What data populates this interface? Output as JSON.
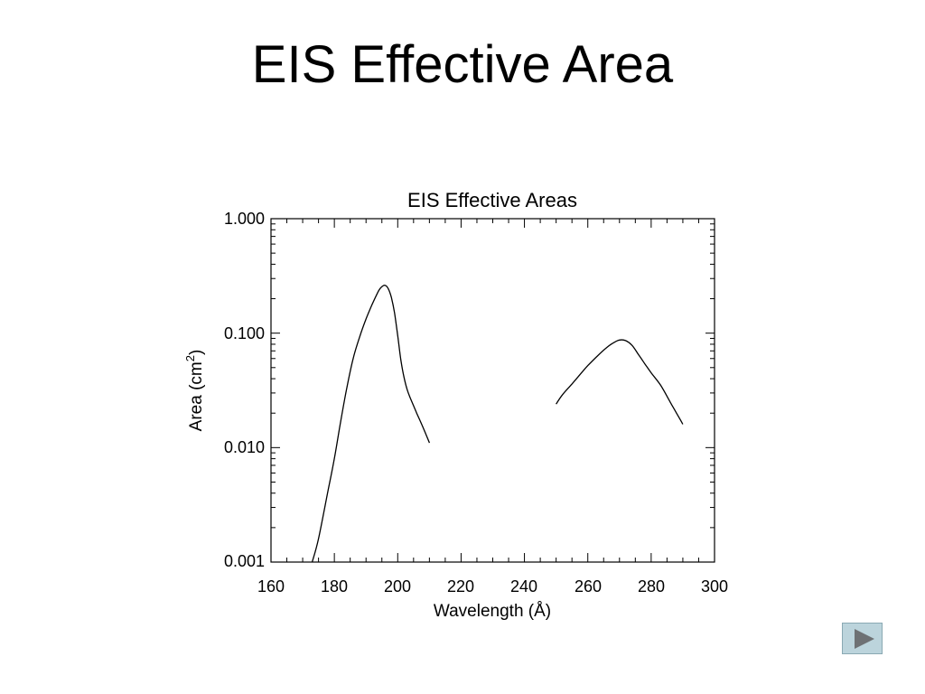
{
  "slide": {
    "title": "EIS Effective Area"
  },
  "nav": {
    "next_icon": "play-triangle-icon"
  },
  "colors": {
    "line": "#000000",
    "nav_fill": "#bcd4dc",
    "nav_arrow": "#6e7174"
  },
  "chart_data": {
    "type": "line",
    "title": "EIS Effective Areas",
    "xlabel": "Wavelength (Å)",
    "ylabel_main": "Area (cm",
    "ylabel_sup": "2",
    "ylabel_close": ")",
    "xlim": [
      160,
      300
    ],
    "ylim": [
      0.001,
      1.0
    ],
    "yscale": "log",
    "grid": false,
    "x_ticks": [
      "160",
      "180",
      "200",
      "220",
      "240",
      "260",
      "280",
      "300"
    ],
    "y_ticks": [
      "1.000",
      "0.100",
      "0.010",
      "0.001"
    ],
    "series": [
      {
        "x": [
          173,
          175,
          178,
          180,
          182,
          184,
          186,
          188,
          190,
          192,
          194,
          195,
          196,
          197,
          198,
          199,
          200,
          201,
          202,
          203,
          204,
          206,
          208,
          210
        ],
        "y": [
          0.001,
          0.0016,
          0.0042,
          0.008,
          0.017,
          0.034,
          0.061,
          0.093,
          0.133,
          0.18,
          0.235,
          0.255,
          0.262,
          0.245,
          0.205,
          0.15,
          0.095,
          0.058,
          0.041,
          0.032,
          0.027,
          0.02,
          0.015,
          0.011
        ]
      },
      {
        "x": [
          250,
          252,
          255,
          258,
          260,
          263,
          266,
          268,
          270,
          272,
          274,
          276,
          278,
          280,
          283,
          286,
          288,
          290
        ],
        "y": [
          0.024,
          0.029,
          0.036,
          0.045,
          0.052,
          0.063,
          0.075,
          0.082,
          0.087,
          0.086,
          0.078,
          0.065,
          0.054,
          0.045,
          0.035,
          0.025,
          0.02,
          0.016
        ]
      }
    ]
  }
}
